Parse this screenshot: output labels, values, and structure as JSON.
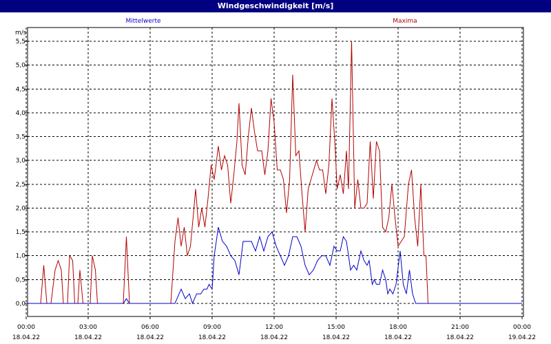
{
  "window": {
    "title": "Windgeschwindigkeit [m/s]"
  },
  "colors": {
    "mean": "#0000cc",
    "max": "#b00000",
    "titlebar": "#000080"
  },
  "chart_data": {
    "type": "line",
    "title": "Windgeschwindigkeit [m/s]",
    "ylabel": "m/s",
    "ylim": [
      0,
      5.75
    ],
    "xlim": [
      0,
      24
    ],
    "grid": true,
    "yticks": [
      {
        "v": 0.0,
        "label": "0,0"
      },
      {
        "v": 0.5,
        "label": "0,5"
      },
      {
        "v": 1.0,
        "label": "1,0"
      },
      {
        "v": 1.5,
        "label": "1,5"
      },
      {
        "v": 2.0,
        "label": "2,0"
      },
      {
        "v": 2.5,
        "label": "2,5"
      },
      {
        "v": 3.0,
        "label": "3,0"
      },
      {
        "v": 3.5,
        "label": "3,5"
      },
      {
        "v": 4.0,
        "label": "4,0"
      },
      {
        "v": 4.5,
        "label": "4,5"
      },
      {
        "v": 5.0,
        "label": "5,0"
      },
      {
        "v": 5.5,
        "label": "5,5"
      }
    ],
    "xticks": [
      {
        "v": 0,
        "time": "00:00",
        "date": "18.04.22"
      },
      {
        "v": 3,
        "time": "03:00",
        "date": "18.04.22"
      },
      {
        "v": 6,
        "time": "06:00",
        "date": "18.04.22"
      },
      {
        "v": 9,
        "time": "09:00",
        "date": "18.04.22"
      },
      {
        "v": 12,
        "time": "12:00",
        "date": "18.04.22"
      },
      {
        "v": 15,
        "time": "15:00",
        "date": "18.04.22"
      },
      {
        "v": 18,
        "time": "18:00",
        "date": "18.04.22"
      },
      {
        "v": 21,
        "time": "21:00",
        "date": "18.04.22"
      },
      {
        "v": 24,
        "time": "00:00",
        "date": "19.04.22"
      }
    ],
    "series": [
      {
        "name": "Mittelwerte",
        "points": [
          [
            0,
            0
          ],
          [
            4.7,
            0
          ],
          [
            4.85,
            0.1
          ],
          [
            5,
            0
          ],
          [
            7.2,
            0
          ],
          [
            7.5,
            0.3
          ],
          [
            7.7,
            0.1
          ],
          [
            7.9,
            0.2
          ],
          [
            8.05,
            0
          ],
          [
            8.25,
            0.2
          ],
          [
            8.45,
            0.2
          ],
          [
            8.6,
            0.3
          ],
          [
            8.75,
            0.3
          ],
          [
            8.85,
            0.4
          ],
          [
            9,
            0.3
          ],
          [
            9.1,
            1.0
          ],
          [
            9.3,
            1.6
          ],
          [
            9.5,
            1.3
          ],
          [
            9.7,
            1.2
          ],
          [
            9.9,
            1.0
          ],
          [
            10.1,
            0.9
          ],
          [
            10.3,
            0.6
          ],
          [
            10.5,
            1.3
          ],
          [
            10.7,
            1.3
          ],
          [
            10.9,
            1.3
          ],
          [
            11.1,
            1.1
          ],
          [
            11.3,
            1.4
          ],
          [
            11.5,
            1.1
          ],
          [
            11.7,
            1.4
          ],
          [
            11.9,
            1.5
          ],
          [
            12.1,
            1.2
          ],
          [
            12.3,
            1.0
          ],
          [
            12.5,
            0.8
          ],
          [
            12.7,
            1.0
          ],
          [
            12.9,
            1.4
          ],
          [
            13.1,
            1.4
          ],
          [
            13.3,
            1.2
          ],
          [
            13.5,
            0.8
          ],
          [
            13.7,
            0.6
          ],
          [
            13.9,
            0.7
          ],
          [
            14.1,
            0.9
          ],
          [
            14.3,
            1.0
          ],
          [
            14.5,
            1.0
          ],
          [
            14.7,
            0.8
          ],
          [
            14.9,
            1.2
          ],
          [
            15.05,
            1.1
          ],
          [
            15.2,
            1.1
          ],
          [
            15.35,
            1.4
          ],
          [
            15.5,
            1.3
          ],
          [
            15.7,
            0.7
          ],
          [
            15.85,
            0.8
          ],
          [
            16.0,
            0.7
          ],
          [
            16.2,
            1.1
          ],
          [
            16.35,
            0.9
          ],
          [
            16.5,
            0.8
          ],
          [
            16.6,
            0.9
          ],
          [
            16.75,
            0.4
          ],
          [
            16.85,
            0.5
          ],
          [
            16.95,
            0.4
          ],
          [
            17.1,
            0.4
          ],
          [
            17.25,
            0.7
          ],
          [
            17.4,
            0.5
          ],
          [
            17.5,
            0.2
          ],
          [
            17.6,
            0.3
          ],
          [
            17.75,
            0.2
          ],
          [
            17.9,
            0.4
          ],
          [
            18.1,
            1.1
          ],
          [
            18.25,
            0.4
          ],
          [
            18.4,
            0.2
          ],
          [
            18.55,
            0.7
          ],
          [
            18.7,
            0.2
          ],
          [
            18.85,
            0
          ],
          [
            24,
            0
          ]
        ]
      },
      {
        "name": "Maxima",
        "points": [
          [
            0,
            0
          ],
          [
            0.7,
            0
          ],
          [
            0.85,
            0.8
          ],
          [
            1.0,
            0
          ],
          [
            1.2,
            0
          ],
          [
            1.4,
            0.7
          ],
          [
            1.55,
            0.9
          ],
          [
            1.7,
            0.7
          ],
          [
            1.8,
            0
          ],
          [
            2.0,
            0
          ],
          [
            2.1,
            1.0
          ],
          [
            2.25,
            0.9
          ],
          [
            2.35,
            0
          ],
          [
            2.5,
            0
          ],
          [
            2.6,
            0.7
          ],
          [
            2.75,
            0
          ],
          [
            3.1,
            0
          ],
          [
            3.2,
            1.0
          ],
          [
            3.35,
            0.7
          ],
          [
            3.45,
            0
          ],
          [
            4.7,
            0
          ],
          [
            4.85,
            1.4
          ],
          [
            5.0,
            0
          ],
          [
            7.0,
            0
          ],
          [
            7.2,
            1.3
          ],
          [
            7.35,
            1.8
          ],
          [
            7.5,
            1.2
          ],
          [
            7.65,
            1.6
          ],
          [
            7.8,
            1.0
          ],
          [
            7.95,
            1.2
          ],
          [
            8.1,
            1.9
          ],
          [
            8.2,
            2.4
          ],
          [
            8.35,
            1.6
          ],
          [
            8.5,
            2.0
          ],
          [
            8.65,
            1.6
          ],
          [
            8.8,
            2.2
          ],
          [
            8.95,
            2.9
          ],
          [
            9.1,
            2.6
          ],
          [
            9.3,
            3.3
          ],
          [
            9.45,
            2.8
          ],
          [
            9.6,
            3.1
          ],
          [
            9.75,
            2.9
          ],
          [
            9.9,
            2.1
          ],
          [
            10.05,
            2.7
          ],
          [
            10.2,
            3.4
          ],
          [
            10.3,
            4.2
          ],
          [
            10.45,
            2.9
          ],
          [
            10.6,
            2.7
          ],
          [
            10.75,
            3.5
          ],
          [
            10.9,
            4.1
          ],
          [
            11.05,
            3.6
          ],
          [
            11.2,
            3.2
          ],
          [
            11.4,
            3.2
          ],
          [
            11.55,
            2.7
          ],
          [
            11.7,
            3.2
          ],
          [
            11.85,
            4.3
          ],
          [
            12.0,
            3.8
          ],
          [
            12.15,
            2.8
          ],
          [
            12.3,
            2.8
          ],
          [
            12.45,
            2.6
          ],
          [
            12.6,
            1.9
          ],
          [
            12.75,
            2.6
          ],
          [
            12.9,
            4.8
          ],
          [
            13.05,
            3.1
          ],
          [
            13.2,
            3.2
          ],
          [
            13.35,
            2.3
          ],
          [
            13.5,
            1.5
          ],
          [
            13.65,
            2.4
          ],
          [
            13.85,
            2.7
          ],
          [
            14.05,
            3.0
          ],
          [
            14.2,
            2.8
          ],
          [
            14.35,
            2.8
          ],
          [
            14.5,
            2.3
          ],
          [
            14.65,
            2.9
          ],
          [
            14.8,
            4.3
          ],
          [
            14.95,
            3.3
          ],
          [
            15.05,
            2.4
          ],
          [
            15.2,
            2.7
          ],
          [
            15.35,
            2.3
          ],
          [
            15.5,
            3.2
          ],
          [
            15.6,
            2.4
          ],
          [
            15.75,
            5.5
          ],
          [
            15.9,
            2.0
          ],
          [
            16.05,
            2.6
          ],
          [
            16.2,
            2.0
          ],
          [
            16.35,
            2.0
          ],
          [
            16.5,
            2.1
          ],
          [
            16.65,
            3.4
          ],
          [
            16.8,
            2.2
          ],
          [
            16.95,
            3.4
          ],
          [
            17.1,
            3.2
          ],
          [
            17.25,
            1.6
          ],
          [
            17.4,
            1.5
          ],
          [
            17.55,
            1.8
          ],
          [
            17.7,
            2.5
          ],
          [
            17.85,
            1.8
          ],
          [
            18.0,
            1.2
          ],
          [
            18.15,
            1.3
          ],
          [
            18.3,
            1.4
          ],
          [
            18.5,
            2.5
          ],
          [
            18.65,
            2.8
          ],
          [
            18.8,
            1.8
          ],
          [
            18.95,
            1.2
          ],
          [
            19.1,
            2.5
          ],
          [
            19.25,
            1.0
          ],
          [
            19.35,
            1.0
          ],
          [
            19.45,
            0
          ],
          [
            24,
            0
          ]
        ]
      }
    ]
  }
}
